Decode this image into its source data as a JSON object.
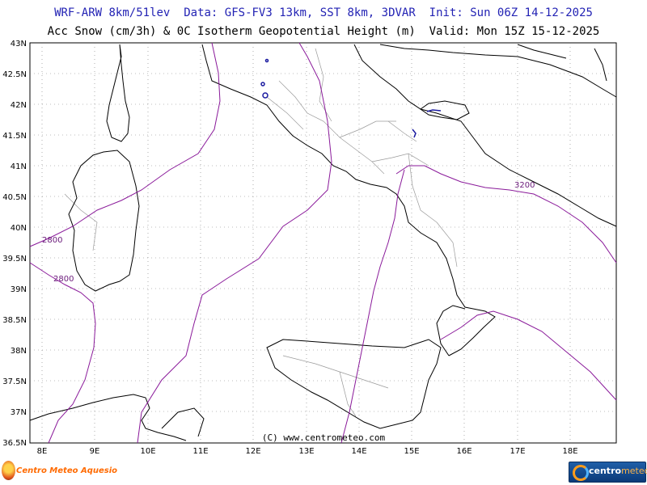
{
  "header": {
    "line1": "WRF-ARW 8km/51lev  Data: GFS-FV3 13km, SST 8km, 3DVAR  Init: Sun 06Z 14-12-2025",
    "line2": "Acc Snow (cm/3h) & 0C Isotherm Geopotential Height (m)  Valid: Mon 15Z 15-12-2025"
  },
  "axes": {
    "lat_labels": [
      "43N",
      "42.5N",
      "42N",
      "41.5N",
      "41N",
      "40.5N",
      "40N",
      "39.5N",
      "39N",
      "38.5N",
      "38N",
      "37.5N",
      "37N",
      "36.5N"
    ],
    "lon_labels": [
      "8E",
      "9E",
      "10E",
      "11E",
      "12E",
      "13E",
      "14E",
      "15E",
      "16E",
      "17E",
      "18E"
    ]
  },
  "contour_labels": [
    "2800",
    "2800",
    "3200"
  ],
  "copyright": "(C) www.centrometeo.com",
  "logos": {
    "left": "Centro Meteo Aquesio",
    "right_part1": "centro",
    "right_part2": "meteo"
  },
  "colors": {
    "header_line1": "#2323b4",
    "isotherm": "#8a1a9a",
    "snow": "#1a1aa0",
    "coast": "#000000",
    "borders": "#9a9a9a",
    "grid": "#7a7a7a"
  }
}
